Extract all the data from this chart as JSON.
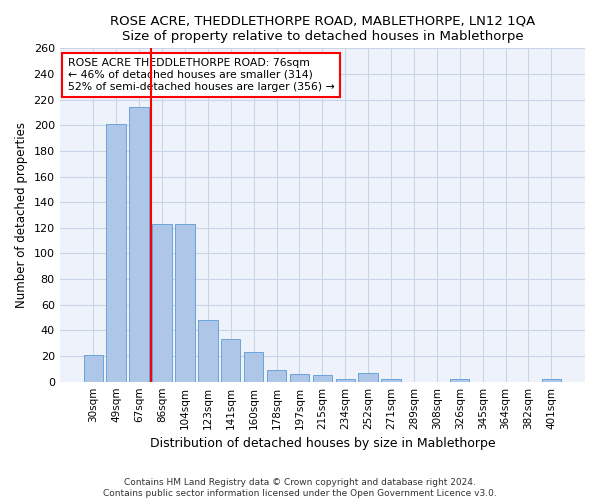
{
  "title": "ROSE ACRE, THEDDLETHORPE ROAD, MABLETHORPE, LN12 1QA",
  "subtitle": "Size of property relative to detached houses in Mablethorpe",
  "xlabel": "Distribution of detached houses by size in Mablethorpe",
  "ylabel": "Number of detached properties",
  "bar_color": "#aec6e8",
  "bar_edge_color": "#5b9bd5",
  "categories": [
    "30sqm",
    "49sqm",
    "67sqm",
    "86sqm",
    "104sqm",
    "123sqm",
    "141sqm",
    "160sqm",
    "178sqm",
    "197sqm",
    "215sqm",
    "234sqm",
    "252sqm",
    "271sqm",
    "289sqm",
    "308sqm",
    "326sqm",
    "345sqm",
    "364sqm",
    "382sqm",
    "401sqm"
  ],
  "values": [
    21,
    201,
    214,
    123,
    123,
    48,
    33,
    23,
    9,
    6,
    5,
    2,
    7,
    2,
    0,
    0,
    2,
    0,
    0,
    0,
    2
  ],
  "ylim": [
    0,
    260
  ],
  "yticks": [
    0,
    20,
    40,
    60,
    80,
    100,
    120,
    140,
    160,
    180,
    200,
    220,
    240,
    260
  ],
  "property_line_x": 2.5,
  "annotation_title": "ROSE ACRE THEDDLETHORPE ROAD: 76sqm",
  "annotation_line1": "← 46% of detached houses are smaller (314)",
  "annotation_line2": "52% of semi-detached houses are larger (356) →",
  "footer1": "Contains HM Land Registry data © Crown copyright and database right 2024.",
  "footer2": "Contains public sector information licensed under the Open Government Licence v3.0.",
  "bg_color": "#eef2fb",
  "grid_color": "#c8d4e8"
}
